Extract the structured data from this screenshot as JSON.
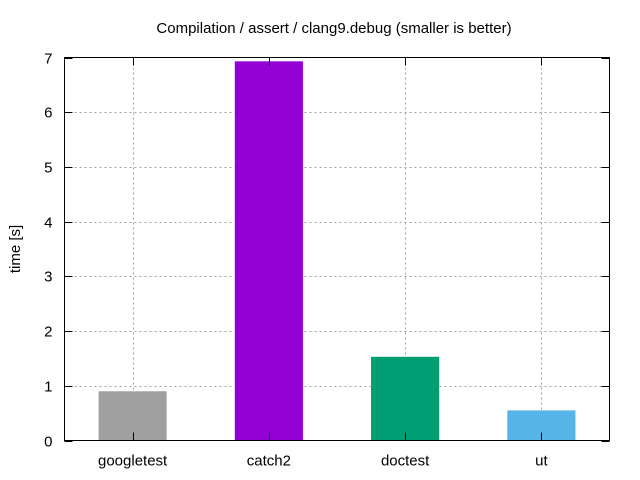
{
  "chart_data": {
    "type": "bar",
    "title": "Compilation / assert / clang9.debug (smaller is better)",
    "xlabel": "",
    "ylabel": "time [s]",
    "categories": [
      "googletest",
      "catch2",
      "doctest",
      "ut"
    ],
    "values": [
      0.9,
      6.93,
      1.53,
      0.55
    ],
    "colors": [
      "#a0a0a0",
      "#9400d3",
      "#009e73",
      "#56b4e9"
    ],
    "ylim": [
      0,
      7
    ],
    "yticks": [
      "0",
      "1",
      "2",
      "3",
      "4",
      "5",
      "6",
      "7"
    ],
    "grid": true,
    "legend": "none"
  }
}
